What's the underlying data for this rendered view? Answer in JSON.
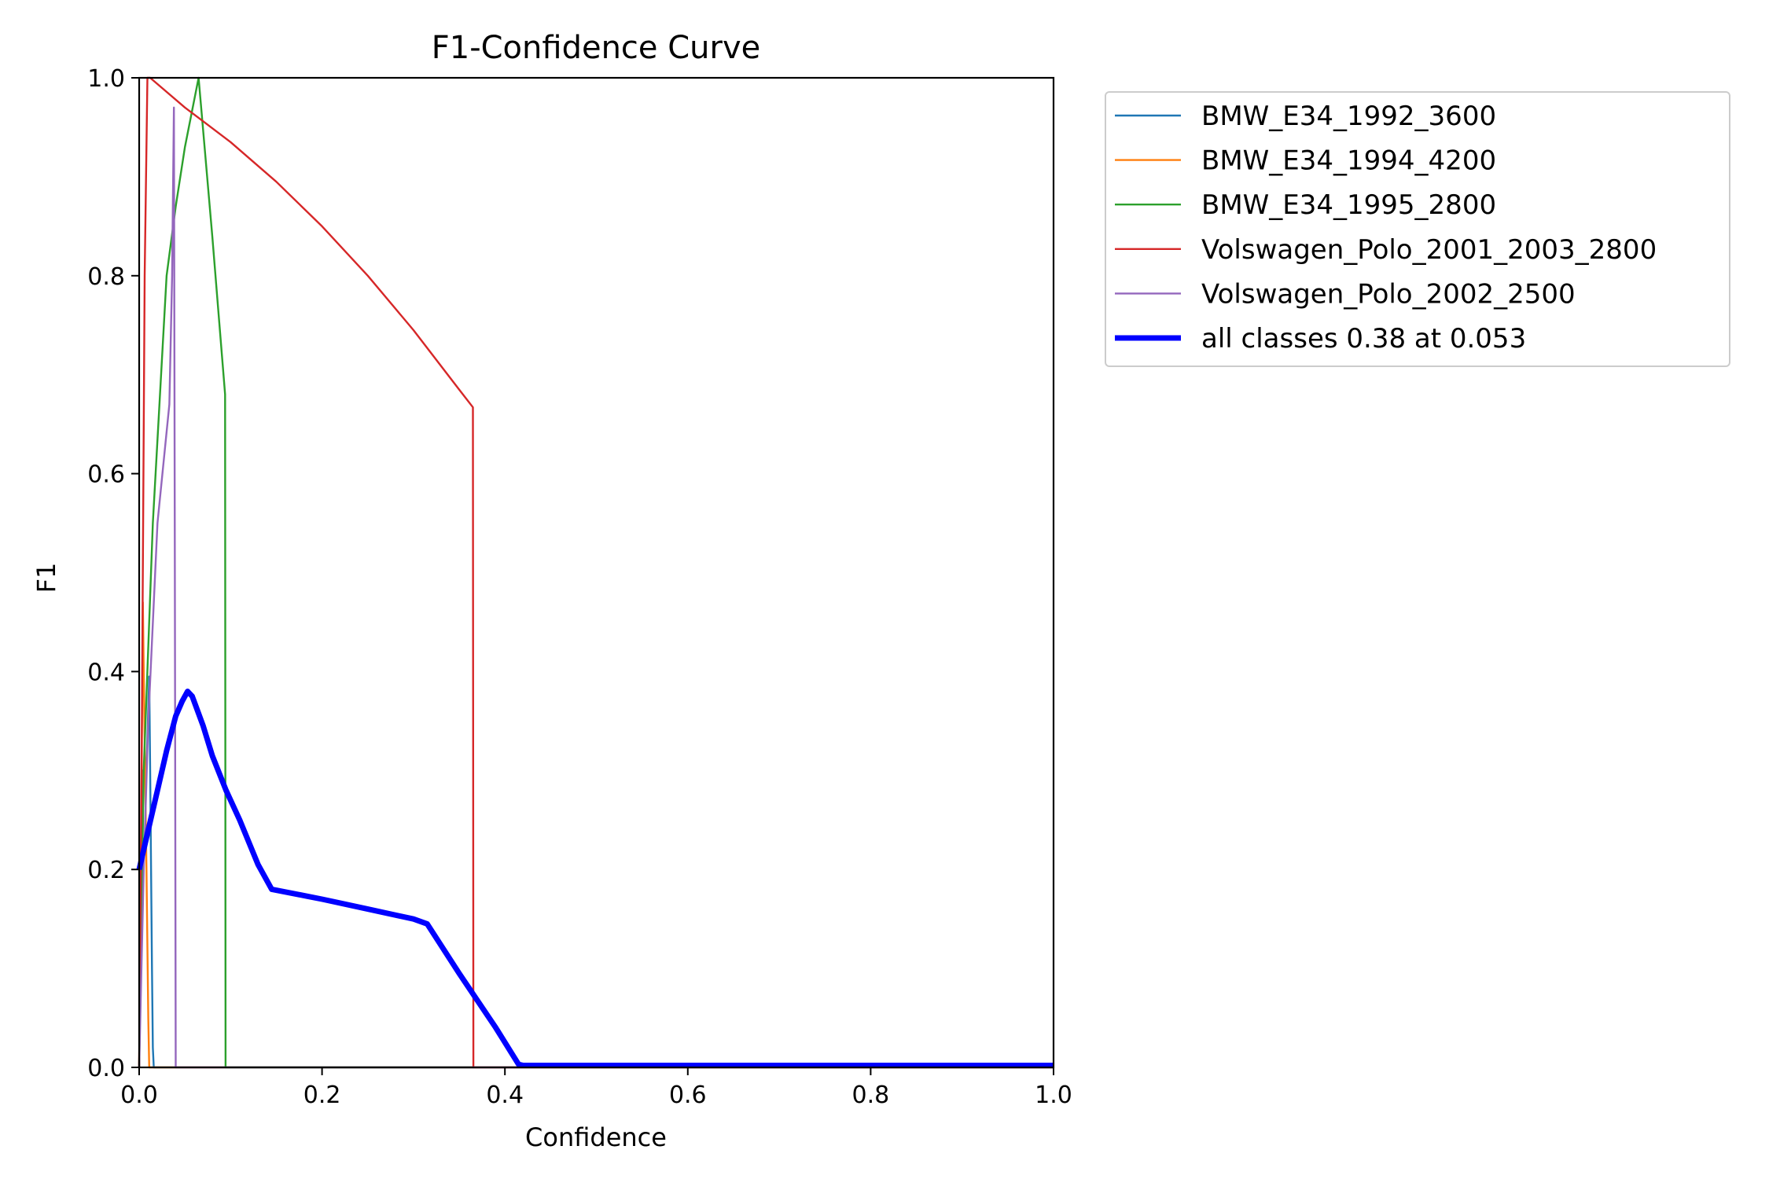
{
  "chart_data": {
    "type": "line",
    "title": "F1-Confidence Curve",
    "xlabel": "Confidence",
    "ylabel": "F1",
    "xlim": [
      0,
      1
    ],
    "ylim": [
      0,
      1
    ],
    "xticks": [
      "0.0",
      "0.2",
      "0.4",
      "0.6",
      "0.8",
      "1.0"
    ],
    "yticks": [
      "0.0",
      "0.2",
      "0.4",
      "0.6",
      "0.8",
      "1.0"
    ],
    "grid": false,
    "legend_placement": "outside-top-right",
    "series": [
      {
        "name": "BMW_E34_1992_3600",
        "color": "#1f77b4",
        "x": [
          0.0,
          0.004,
          0.008,
          0.011,
          0.012,
          0.014,
          0.015,
          0.016,
          1.0
        ],
        "y": [
          0.0,
          0.3,
          0.3,
          0.395,
          0.3,
          0.1,
          0.02,
          0.0,
          0.0
        ]
      },
      {
        "name": "BMW_E34_1994_4200",
        "color": "#ff7f0e",
        "x": [
          0.0,
          0.002,
          0.004,
          0.006,
          0.008,
          0.01,
          0.011,
          1.0
        ],
        "y": [
          0.0,
          0.2,
          0.47,
          0.33,
          0.2,
          0.05,
          0.0,
          0.0
        ]
      },
      {
        "name": "BMW_E34_1995_2800",
        "color": "#2ca02c",
        "x": [
          0.0,
          0.005,
          0.015,
          0.03,
          0.04,
          0.05,
          0.065,
          0.08,
          0.094,
          0.0945,
          1.0
        ],
        "y": [
          0.0,
          0.3,
          0.55,
          0.8,
          0.87,
          0.93,
          1.0,
          0.84,
          0.68,
          0.0,
          0.0
        ]
      },
      {
        "name": "Volswagen_Polo_2001_2003_2800",
        "color": "#d62728",
        "x": [
          0.0,
          0.003,
          0.006,
          0.009,
          0.012,
          0.05,
          0.1,
          0.15,
          0.2,
          0.25,
          0.3,
          0.35,
          0.365,
          0.3655,
          1.0
        ],
        "y": [
          0.0,
          0.35,
          0.8,
          1.0,
          1.0,
          0.97,
          0.935,
          0.895,
          0.85,
          0.8,
          0.745,
          0.685,
          0.667,
          0.0,
          0.0
        ]
      },
      {
        "name": "Volswagen_Polo_2002_2500",
        "color": "#9467bd",
        "x": [
          0.0,
          0.005,
          0.01,
          0.02,
          0.033,
          0.036,
          0.038,
          0.039,
          0.04,
          1.0
        ],
        "y": [
          0.0,
          0.2,
          0.35,
          0.55,
          0.67,
          0.8,
          0.97,
          0.5,
          0.0,
          0.0
        ]
      },
      {
        "name": "all classes 0.38 at 0.053",
        "color": "#0000ff",
        "x": [
          0.0,
          0.01,
          0.02,
          0.03,
          0.04,
          0.047,
          0.053,
          0.058,
          0.07,
          0.08,
          0.095,
          0.11,
          0.13,
          0.145,
          0.2,
          0.25,
          0.3,
          0.315,
          0.35,
          0.39,
          0.415,
          0.42,
          1.0
        ],
        "y": [
          0.2,
          0.24,
          0.28,
          0.32,
          0.355,
          0.37,
          0.38,
          0.375,
          0.345,
          0.315,
          0.28,
          0.25,
          0.205,
          0.18,
          0.17,
          0.16,
          0.15,
          0.145,
          0.095,
          0.04,
          0.003,
          0.002,
          0.002
        ]
      }
    ]
  }
}
